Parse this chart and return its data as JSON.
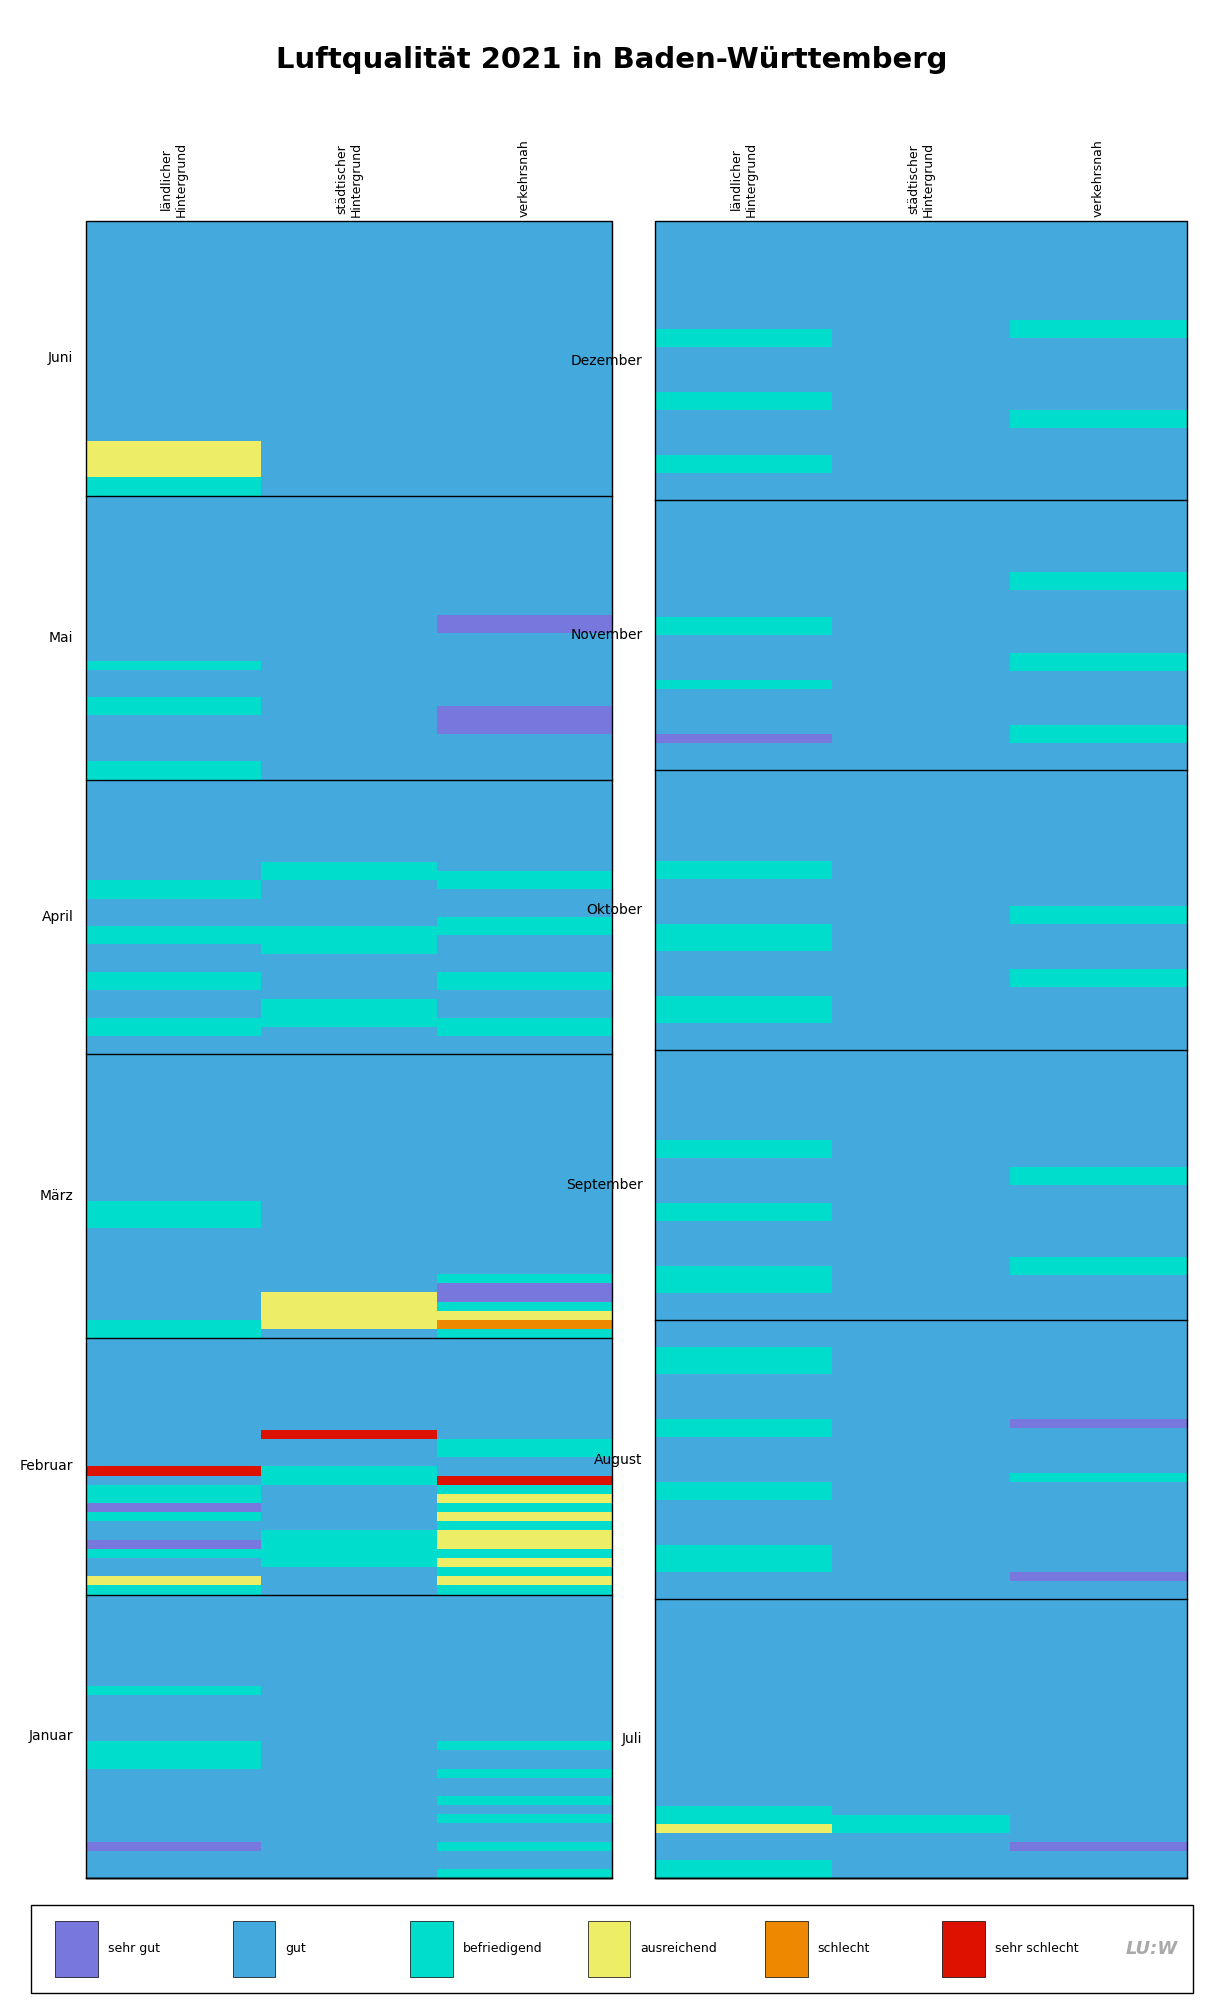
{
  "title": "Luftqualität 2021 in Baden-Württemberg",
  "col_labels": [
    "ländlicher\nHintergrund",
    "städtischer\nHintergrund",
    "verkehrsnah"
  ],
  "months_left": [
    "Januar",
    "Februar",
    "März",
    "April",
    "Mai",
    "Juni"
  ],
  "months_right": [
    "Juli",
    "August",
    "September",
    "Oktober",
    "November",
    "Dezember"
  ],
  "days": {
    "Januar": 31,
    "Februar": 28,
    "März": 31,
    "April": 30,
    "Mai": 31,
    "Juni": 30,
    "Juli": 31,
    "August": 31,
    "September": 30,
    "Oktober": 31,
    "November": 30,
    "Dezember": 31
  },
  "colors": {
    "SG": "#7777dd",
    "G": "#44aadd",
    "B": "#00ddcc",
    "A": "#eeee66",
    "S": "#ee8800",
    "SS": "#dd1100"
  },
  "legend": [
    {
      "label": "sehr gut",
      "color": "#7777dd"
    },
    {
      "label": "gut",
      "color": "#44aadd"
    },
    {
      "label": "befriedigend",
      "color": "#00ddcc"
    },
    {
      "label": "ausreichend",
      "color": "#eeee66"
    },
    {
      "label": "schlecht",
      "color": "#ee8800"
    },
    {
      "label": "sehr schlecht",
      "color": "#dd1100"
    }
  ],
  "bands": {
    "left": {
      "Januar": {
        "laendlich": [
          [
            "G",
            3
          ],
          [
            "SG",
            1
          ],
          [
            "G",
            8
          ],
          [
            "B",
            3
          ],
          [
            "G",
            5
          ],
          [
            "B",
            1
          ],
          [
            "G",
            10
          ]
        ],
        "staedtisch": [
          [
            "G",
            31
          ]
        ],
        "verkehr": [
          [
            "B",
            1
          ],
          [
            "G",
            2
          ],
          [
            "B",
            1
          ],
          [
            "G",
            2
          ],
          [
            "B",
            1
          ],
          [
            "G",
            1
          ],
          [
            "B",
            1
          ],
          [
            "G",
            2
          ],
          [
            "B",
            1
          ],
          [
            "G",
            2
          ],
          [
            "B",
            1
          ],
          [
            "G",
            16
          ]
        ]
      },
      "Februar": {
        "laendlich": [
          [
            "B",
            1
          ],
          [
            "A",
            1
          ],
          [
            "G",
            2
          ],
          [
            "B",
            1
          ],
          [
            "SG",
            1
          ],
          [
            "G",
            2
          ],
          [
            "B",
            1
          ],
          [
            "SG",
            1
          ],
          [
            "B",
            2
          ],
          [
            "G",
            1
          ],
          [
            "SS",
            1
          ],
          [
            "G",
            14
          ]
        ],
        "staedtisch": [
          [
            "G",
            3
          ],
          [
            "B",
            4
          ],
          [
            "G",
            5
          ],
          [
            "B",
            2
          ],
          [
            "G",
            3
          ],
          [
            "SS",
            1
          ],
          [
            "G",
            10
          ]
        ],
        "verkehr": [
          [
            "B",
            1
          ],
          [
            "A",
            1
          ],
          [
            "B",
            1
          ],
          [
            "A",
            1
          ],
          [
            "B",
            1
          ],
          [
            "A",
            2
          ],
          [
            "B",
            1
          ],
          [
            "A",
            1
          ],
          [
            "B",
            1
          ],
          [
            "A",
            1
          ],
          [
            "B",
            1
          ],
          [
            "SS",
            1
          ],
          [
            "G",
            2
          ],
          [
            "B",
            2
          ],
          [
            "G",
            11
          ]
        ]
      },
      "März": {
        "laendlich": [
          [
            "B",
            2
          ],
          [
            "G",
            10
          ],
          [
            "B",
            3
          ],
          [
            "G",
            16
          ]
        ],
        "staedtisch": [
          [
            "G",
            1
          ],
          [
            "A",
            4
          ],
          [
            "G",
            26
          ]
        ],
        "verkehr": [
          [
            "B",
            1
          ],
          [
            "S",
            1
          ],
          [
            "A",
            1
          ],
          [
            "B",
            1
          ],
          [
            "SG",
            2
          ],
          [
            "B",
            1
          ],
          [
            "G",
            24
          ]
        ]
      },
      "April": {
        "laendlich": [
          [
            "G",
            2
          ],
          [
            "B",
            2
          ],
          [
            "G",
            3
          ],
          [
            "B",
            2
          ],
          [
            "G",
            3
          ],
          [
            "B",
            2
          ],
          [
            "G",
            3
          ],
          [
            "B",
            2
          ],
          [
            "G",
            11
          ]
        ],
        "staedtisch": [
          [
            "G",
            3
          ],
          [
            "B",
            3
          ],
          [
            "G",
            5
          ],
          [
            "B",
            3
          ],
          [
            "G",
            5
          ],
          [
            "B",
            2
          ],
          [
            "G",
            9
          ]
        ],
        "verkehr": [
          [
            "G",
            2
          ],
          [
            "B",
            2
          ],
          [
            "G",
            3
          ],
          [
            "B",
            2
          ],
          [
            "G",
            4
          ],
          [
            "B",
            2
          ],
          [
            "G",
            3
          ],
          [
            "B",
            2
          ],
          [
            "G",
            10
          ]
        ]
      },
      "Mai": {
        "laendlich": [
          [
            "B",
            2
          ],
          [
            "G",
            5
          ],
          [
            "B",
            2
          ],
          [
            "G",
            3
          ],
          [
            "B",
            1
          ],
          [
            "G",
            18
          ]
        ],
        "staedtisch": [
          [
            "G",
            31
          ]
        ],
        "verkehr": [
          [
            "G",
            5
          ],
          [
            "SG",
            3
          ],
          [
            "G",
            8
          ],
          [
            "SG",
            2
          ],
          [
            "G",
            13
          ]
        ]
      },
      "Juni": {
        "laendlich": [
          [
            "B",
            2
          ],
          [
            "A",
            4
          ],
          [
            "G",
            24
          ]
        ],
        "staedtisch": [
          [
            "G",
            30
          ]
        ],
        "verkehr": [
          [
            "G",
            30
          ]
        ]
      }
    },
    "right": {
      "Juli": {
        "laendlich": [
          [
            "B",
            2
          ],
          [
            "G",
            3
          ],
          [
            "A",
            1
          ],
          [
            "B",
            2
          ],
          [
            "G",
            23
          ]
        ],
        "staedtisch": [
          [
            "G",
            5
          ],
          [
            "B",
            2
          ],
          [
            "G",
            24
          ]
        ],
        "verkehr": [
          [
            "G",
            3
          ],
          [
            "SG",
            1
          ],
          [
            "G",
            27
          ]
        ]
      },
      "August": {
        "laendlich": [
          [
            "G",
            3
          ],
          [
            "B",
            3
          ],
          [
            "G",
            5
          ],
          [
            "B",
            2
          ],
          [
            "G",
            5
          ],
          [
            "B",
            2
          ],
          [
            "G",
            5
          ],
          [
            "B",
            3
          ],
          [
            "G",
            3
          ]
        ],
        "staedtisch": [
          [
            "G",
            31
          ]
        ],
        "verkehr": [
          [
            "G",
            2
          ],
          [
            "SG",
            1
          ],
          [
            "G",
            10
          ],
          [
            "B",
            1
          ],
          [
            "G",
            5
          ],
          [
            "SG",
            1
          ],
          [
            "G",
            11
          ]
        ]
      },
      "September": {
        "laendlich": [
          [
            "G",
            3
          ],
          [
            "B",
            3
          ],
          [
            "G",
            5
          ],
          [
            "B",
            2
          ],
          [
            "G",
            5
          ],
          [
            "B",
            2
          ],
          [
            "G",
            10
          ]
        ],
        "staedtisch": [
          [
            "G",
            30
          ]
        ],
        "verkehr": [
          [
            "G",
            5
          ],
          [
            "B",
            2
          ],
          [
            "G",
            8
          ],
          [
            "B",
            2
          ],
          [
            "G",
            13
          ]
        ]
      },
      "Oktober": {
        "laendlich": [
          [
            "G",
            3
          ],
          [
            "B",
            3
          ],
          [
            "G",
            5
          ],
          [
            "B",
            3
          ],
          [
            "G",
            5
          ],
          [
            "B",
            2
          ],
          [
            "G",
            10
          ]
        ],
        "staedtisch": [
          [
            "G",
            31
          ]
        ],
        "verkehr": [
          [
            "G",
            7
          ],
          [
            "B",
            2
          ],
          [
            "G",
            5
          ],
          [
            "B",
            2
          ],
          [
            "G",
            15
          ]
        ]
      },
      "November": {
        "laendlich": [
          [
            "G",
            3
          ],
          [
            "SG",
            1
          ],
          [
            "G",
            5
          ],
          [
            "B",
            1
          ],
          [
            "G",
            5
          ],
          [
            "B",
            2
          ],
          [
            "G",
            13
          ]
        ],
        "staedtisch": [
          [
            "G",
            30
          ]
        ],
        "verkehr": [
          [
            "G",
            3
          ],
          [
            "B",
            2
          ],
          [
            "G",
            6
          ],
          [
            "B",
            2
          ],
          [
            "G",
            7
          ],
          [
            "B",
            2
          ],
          [
            "G",
            8
          ]
        ]
      },
      "Dezember": {
        "laendlich": [
          [
            "G",
            3
          ],
          [
            "B",
            2
          ],
          [
            "G",
            5
          ],
          [
            "B",
            2
          ],
          [
            "G",
            5
          ],
          [
            "B",
            2
          ],
          [
            "G",
            12
          ]
        ],
        "staedtisch": [
          [
            "G",
            31
          ]
        ],
        "verkehr": [
          [
            "G",
            8
          ],
          [
            "B",
            2
          ],
          [
            "G",
            8
          ],
          [
            "B",
            2
          ],
          [
            "G",
            11
          ]
        ]
      }
    }
  }
}
